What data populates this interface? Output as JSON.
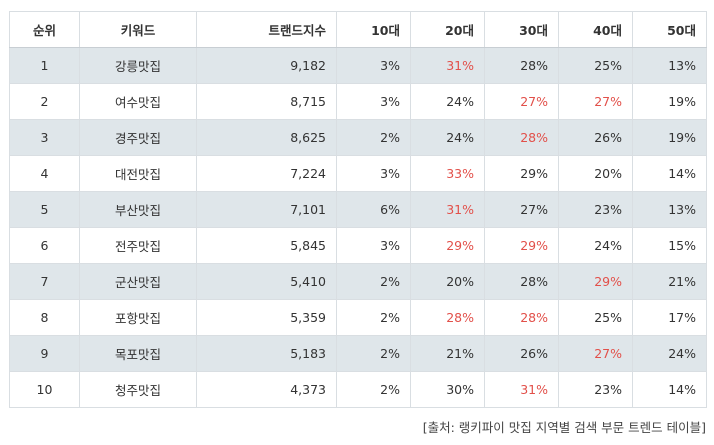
{
  "table": {
    "headers": [
      "순위",
      "키워드",
      "트랜드지수",
      "10대",
      "20대",
      "30대",
      "40대",
      "50대"
    ],
    "rows": [
      {
        "rank": "1",
        "keyword": "강릉맛집",
        "index": "9,182",
        "ages": [
          "3%",
          "31%",
          "28%",
          "25%",
          "13%"
        ],
        "highlight": [
          false,
          true,
          false,
          false,
          false
        ]
      },
      {
        "rank": "2",
        "keyword": "여수맛집",
        "index": "8,715",
        "ages": [
          "3%",
          "24%",
          "27%",
          "27%",
          "19%"
        ],
        "highlight": [
          false,
          false,
          true,
          true,
          false
        ]
      },
      {
        "rank": "3",
        "keyword": "경주맛집",
        "index": "8,625",
        "ages": [
          "2%",
          "24%",
          "28%",
          "26%",
          "19%"
        ],
        "highlight": [
          false,
          false,
          true,
          false,
          false
        ]
      },
      {
        "rank": "4",
        "keyword": "대전맛집",
        "index": "7,224",
        "ages": [
          "3%",
          "33%",
          "29%",
          "20%",
          "14%"
        ],
        "highlight": [
          false,
          true,
          false,
          false,
          false
        ]
      },
      {
        "rank": "5",
        "keyword": "부산맛집",
        "index": "7,101",
        "ages": [
          "6%",
          "31%",
          "27%",
          "23%",
          "13%"
        ],
        "highlight": [
          false,
          true,
          false,
          false,
          false
        ]
      },
      {
        "rank": "6",
        "keyword": "전주맛집",
        "index": "5,845",
        "ages": [
          "3%",
          "29%",
          "29%",
          "24%",
          "15%"
        ],
        "highlight": [
          false,
          true,
          true,
          false,
          false
        ]
      },
      {
        "rank": "7",
        "keyword": "군산맛집",
        "index": "5,410",
        "ages": [
          "2%",
          "20%",
          "28%",
          "29%",
          "21%"
        ],
        "highlight": [
          false,
          false,
          false,
          true,
          false
        ]
      },
      {
        "rank": "8",
        "keyword": "포항맛집",
        "index": "5,359",
        "ages": [
          "2%",
          "28%",
          "28%",
          "25%",
          "17%"
        ],
        "highlight": [
          false,
          true,
          true,
          false,
          false
        ]
      },
      {
        "rank": "9",
        "keyword": "목포맛집",
        "index": "5,183",
        "ages": [
          "2%",
          "21%",
          "26%",
          "27%",
          "24%"
        ],
        "highlight": [
          false,
          false,
          false,
          true,
          false
        ]
      },
      {
        "rank": "10",
        "keyword": "청주맛집",
        "index": "4,373",
        "ages": [
          "2%",
          "30%",
          "31%",
          "23%",
          "14%"
        ],
        "highlight": [
          false,
          false,
          true,
          false,
          false
        ]
      }
    ]
  },
  "caption": "[출처: 랭키파이 맛집 지역별 검색 부문 트렌드 테이블]",
  "colors": {
    "highlight": "#e2504a",
    "stripe": "#dfe6ea",
    "border": "#d9dee2",
    "text": "#333333"
  }
}
